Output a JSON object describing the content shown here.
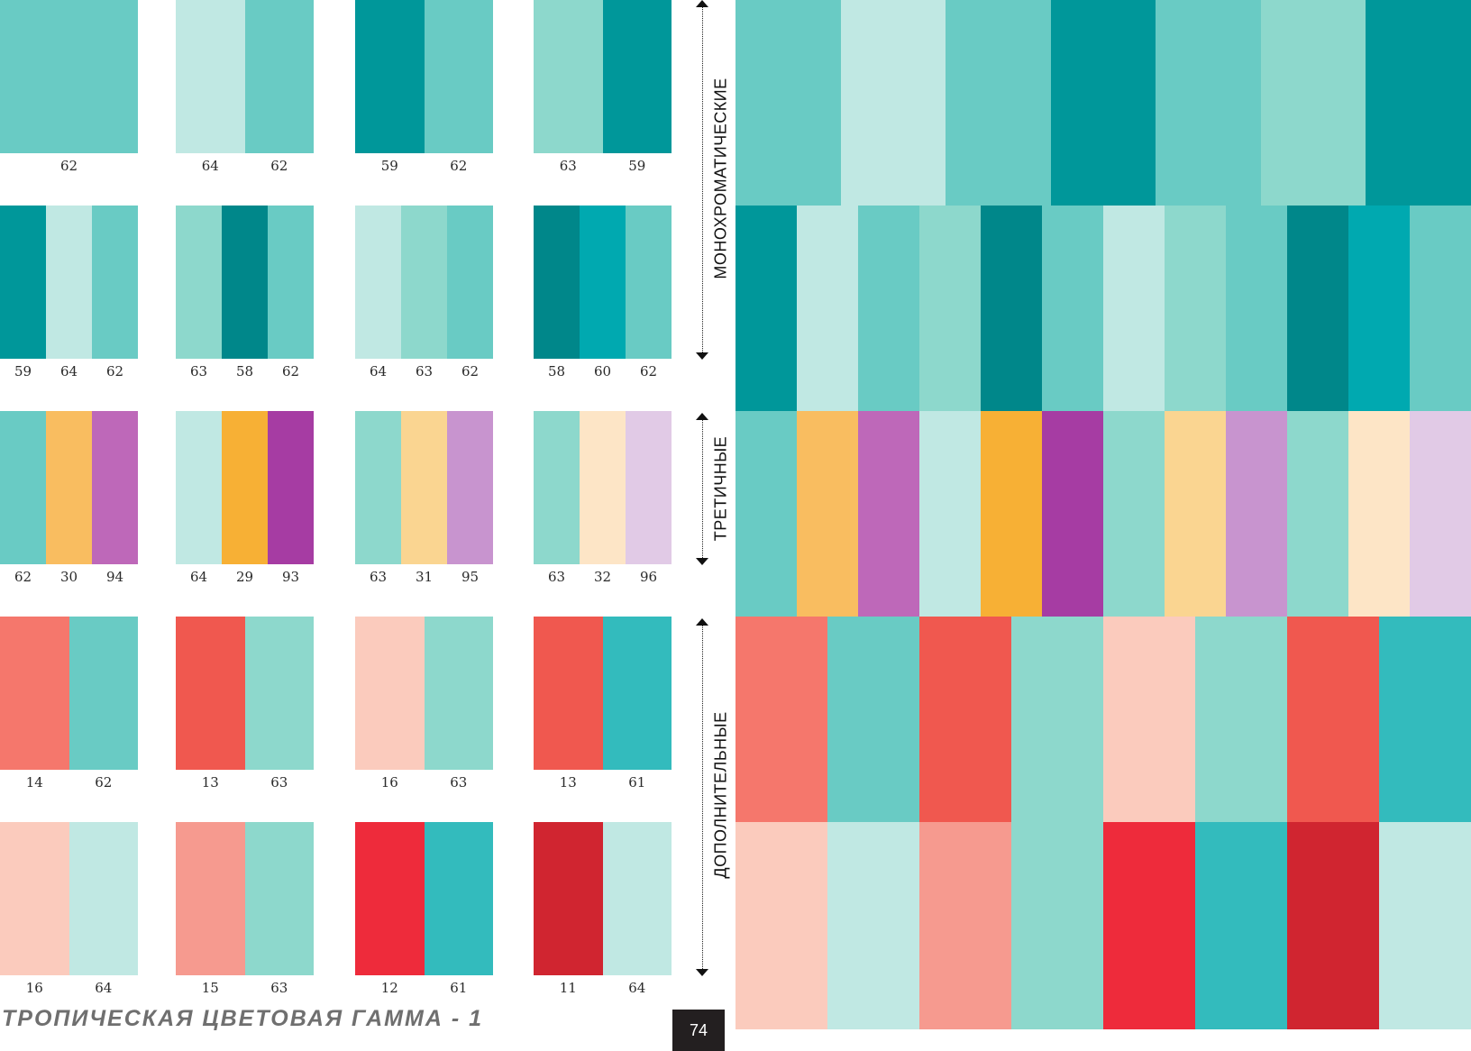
{
  "page": {
    "title": "ТРОПИЧЕСКАЯ ЦВЕТОВАЯ ГАММА - 1",
    "number": "74"
  },
  "sections": [
    {
      "label": "МОНОХРОМАТИЧЕСКИЕ"
    },
    {
      "label": "ТРЕТИЧНЫЕ"
    },
    {
      "label": "ДОПОЛНИТЕЛЬНЫЕ"
    }
  ],
  "palettes": [
    [
      {
        "codes": [
          "62"
        ],
        "colors": [
          "#69cbc4"
        ]
      },
      {
        "codes": [
          "64",
          "62"
        ],
        "colors": [
          "#c0e8e3",
          "#69cbc4"
        ]
      },
      {
        "codes": [
          "59",
          "62"
        ],
        "colors": [
          "#00979a",
          "#69cbc4"
        ]
      },
      {
        "codes": [
          "63",
          "59"
        ],
        "colors": [
          "#8dd8cc",
          "#00979a"
        ]
      }
    ],
    [
      {
        "codes": [
          "59",
          "64",
          "62"
        ],
        "colors": [
          "#00979a",
          "#c0e8e3",
          "#69cbc4"
        ]
      },
      {
        "codes": [
          "63",
          "58",
          "62"
        ],
        "colors": [
          "#8dd8cc",
          "#00878a",
          "#69cbc4"
        ]
      },
      {
        "codes": [
          "64",
          "63",
          "62"
        ],
        "colors": [
          "#c0e8e3",
          "#8dd8cc",
          "#69cbc4"
        ]
      },
      {
        "codes": [
          "58",
          "60",
          "62"
        ],
        "colors": [
          "#00878a",
          "#00a9b0",
          "#69cbc4"
        ]
      }
    ],
    [
      {
        "codes": [
          "62",
          "30",
          "94"
        ],
        "colors": [
          "#69cbc4",
          "#f9bd60",
          "#be68b9"
        ]
      },
      {
        "codes": [
          "64",
          "29",
          "93"
        ],
        "colors": [
          "#c0e8e3",
          "#f7b035",
          "#a63ca3"
        ]
      },
      {
        "codes": [
          "63",
          "31",
          "95"
        ],
        "colors": [
          "#8dd8cc",
          "#fad591",
          "#c894cf"
        ]
      },
      {
        "codes": [
          "63",
          "32",
          "96"
        ],
        "colors": [
          "#8dd8cc",
          "#fde5c6",
          "#e1cae6"
        ]
      }
    ],
    [
      {
        "codes": [
          "14",
          "62"
        ],
        "colors": [
          "#f5776c",
          "#69cbc4"
        ]
      },
      {
        "codes": [
          "13",
          "63"
        ],
        "colors": [
          "#f0584f",
          "#8dd8cc"
        ]
      },
      {
        "codes": [
          "16",
          "63"
        ],
        "colors": [
          "#fbcbbd",
          "#8dd8cc"
        ]
      },
      {
        "codes": [
          "13",
          "61"
        ],
        "colors": [
          "#f0584f",
          "#33bbbd"
        ]
      }
    ],
    [
      {
        "codes": [
          "16",
          "64"
        ],
        "colors": [
          "#fbcbbd",
          "#c0e8e3"
        ]
      },
      {
        "codes": [
          "15",
          "63"
        ],
        "colors": [
          "#f69a8f",
          "#8dd8cc"
        ]
      },
      {
        "codes": [
          "12",
          "61"
        ],
        "colors": [
          "#ee2b3b",
          "#33bbbd"
        ]
      },
      {
        "codes": [
          "11",
          "64"
        ],
        "colors": [
          "#d02530",
          "#c0e8e3"
        ]
      }
    ]
  ]
}
